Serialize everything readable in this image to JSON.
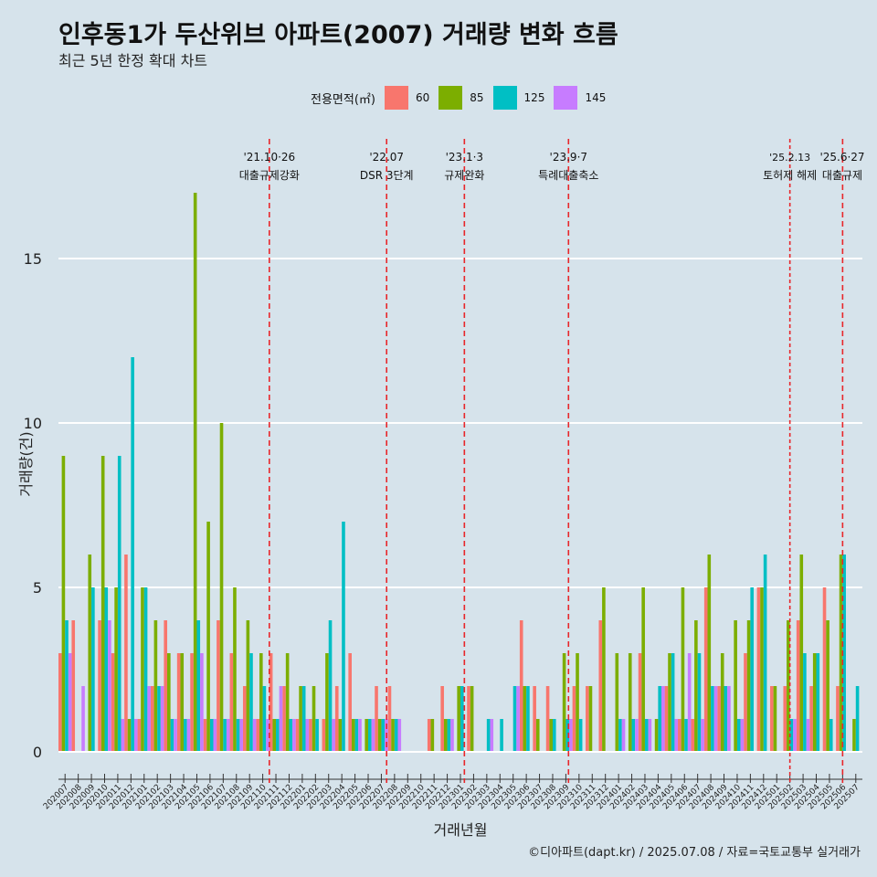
{
  "title": "인후동1가 두산위브 아파트(2007) 거래량 변화 흐름",
  "subtitle": "최근 5년 한정 확대 차트",
  "caption": "©디아파트(dapt.kr) / 2025.07.08 / 자료=국토교통부 실거래가",
  "legend": {
    "title": "전용면적(㎡)",
    "items": [
      {
        "label": "60",
        "color": "#f8766d"
      },
      {
        "label": "85",
        "color": "#7cae00"
      },
      {
        "label": "125",
        "color": "#00bfc4"
      },
      {
        "label": "145",
        "color": "#c77cff"
      }
    ]
  },
  "chart_data": {
    "type": "bar",
    "xlabel": "거래년월",
    "ylabel": "거래량(건)",
    "ylim": [
      0,
      17
    ],
    "yticks": [
      0,
      5,
      10,
      15
    ],
    "categories": [
      "202007",
      "202008",
      "202009",
      "202010",
      "202011",
      "202012",
      "202101",
      "202102",
      "202103",
      "202104",
      "202105",
      "202106",
      "202107",
      "202108",
      "202109",
      "202110",
      "202111",
      "202112",
      "202201",
      "202202",
      "202203",
      "202204",
      "202205",
      "202206",
      "202207",
      "202208",
      "202209",
      "202210",
      "202211",
      "202212",
      "202301",
      "202302",
      "202303",
      "202304",
      "202305",
      "202306",
      "202307",
      "202308",
      "202309",
      "202310",
      "202311",
      "202312",
      "202401",
      "202402",
      "202403",
      "202404",
      "202405",
      "202406",
      "202407",
      "202408",
      "202409",
      "202410",
      "202411",
      "202412",
      "202501",
      "202502",
      "202503",
      "202504",
      "202505",
      "202506",
      "202507"
    ],
    "series": [
      {
        "name": "60",
        "color": "#f8766d",
        "values": [
          3,
          4,
          0,
          4,
          3,
          6,
          1,
          2,
          4,
          3,
          3,
          1,
          4,
          3,
          2,
          1,
          3,
          2,
          1,
          1,
          1,
          2,
          3,
          0,
          2,
          2,
          0,
          0,
          1,
          2,
          0,
          2,
          0,
          0,
          0,
          4,
          2,
          2,
          0,
          2,
          2,
          4,
          0,
          0,
          3,
          0,
          2,
          1,
          1,
          5,
          2,
          0,
          3,
          5,
          2,
          2,
          4,
          2,
          5,
          2,
          0
        ]
      },
      {
        "name": "85",
        "color": "#7cae00",
        "values": [
          9,
          0,
          6,
          9,
          5,
          1,
          5,
          4,
          3,
          3,
          17,
          7,
          10,
          5,
          4,
          3,
          1,
          3,
          2,
          2,
          3,
          1,
          1,
          1,
          1,
          1,
          0,
          0,
          1,
          1,
          2,
          2,
          0,
          0,
          0,
          2,
          1,
          1,
          3,
          3,
          2,
          5,
          3,
          3,
          5,
          1,
          3,
          5,
          4,
          6,
          3,
          4,
          4,
          5,
          2,
          4,
          6,
          3,
          4,
          6,
          1
        ]
      },
      {
        "name": "125",
        "color": "#00bfc4",
        "values": [
          4,
          0,
          5,
          5,
          9,
          12,
          5,
          2,
          1,
          1,
          4,
          1,
          1,
          1,
          3,
          2,
          1,
          1,
          2,
          1,
          4,
          7,
          1,
          1,
          1,
          1,
          0,
          0,
          0,
          1,
          2,
          0,
          1,
          1,
          2,
          2,
          0,
          1,
          1,
          1,
          0,
          0,
          1,
          1,
          1,
          2,
          3,
          1,
          3,
          2,
          2,
          1,
          5,
          6,
          0,
          1,
          3,
          3,
          1,
          6,
          2
        ]
      },
      {
        "name": "145",
        "color": "#c77cff",
        "values": [
          3,
          2,
          0,
          4,
          1,
          1,
          2,
          2,
          1,
          1,
          3,
          1,
          1,
          1,
          1,
          1,
          2,
          1,
          1,
          0,
          1,
          0,
          1,
          1,
          1,
          1,
          0,
          0,
          0,
          1,
          0,
          0,
          1,
          0,
          2,
          0,
          0,
          0,
          1,
          0,
          0,
          0,
          1,
          1,
          1,
          2,
          1,
          3,
          1,
          2,
          2,
          1,
          0,
          0,
          0,
          1,
          1,
          0,
          0,
          0,
          0
        ]
      }
    ],
    "events": [
      {
        "date": "'21.10·26",
        "label": "대출규제강화",
        "x_index": 15.5,
        "style": "dashed"
      },
      {
        "date": "'22.07",
        "label": "DSR 3단계",
        "x_index": 24.4,
        "style": "dashed"
      },
      {
        "date": "'23.1·3",
        "label": "규제완화",
        "x_index": 30.3,
        "style": "dashed"
      },
      {
        "date": "'23.9·7",
        "label": "특례대출축소",
        "x_index": 38.2,
        "style": "dashed"
      },
      {
        "date": "'25.2.13",
        "label": "토허제 해제",
        "x_index": 55.0,
        "style": "dotted"
      },
      {
        "date": "'25.6·27",
        "label": "대출규제",
        "x_index": 59.0,
        "style": "dashed"
      }
    ]
  }
}
